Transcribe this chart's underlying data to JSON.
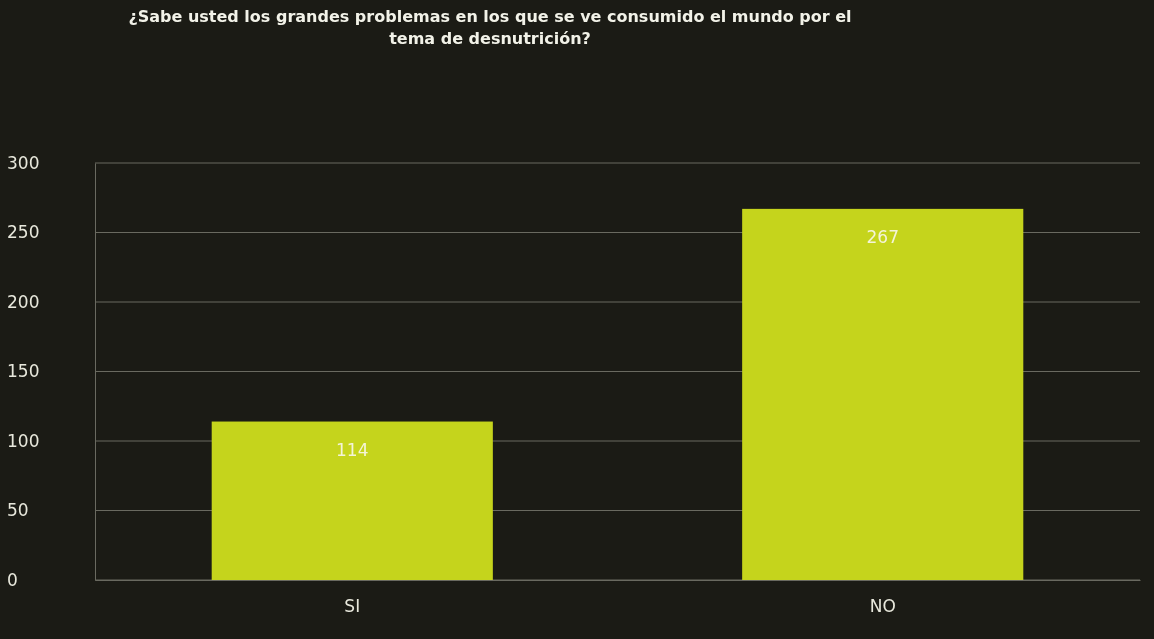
{
  "chart_data": {
    "type": "bar",
    "title": "¿Sabe usted los grandes problemas en los que se ve consumido el mundo por el tema de desnutrición?",
    "categories": [
      "SI",
      "NO"
    ],
    "values": [
      114,
      267
    ],
    "color": "#c5d41c",
    "ylim": [
      0,
      300
    ],
    "yticks": [
      0,
      50,
      100,
      150,
      200,
      250,
      300
    ],
    "grid": "y",
    "data_labels": true
  }
}
